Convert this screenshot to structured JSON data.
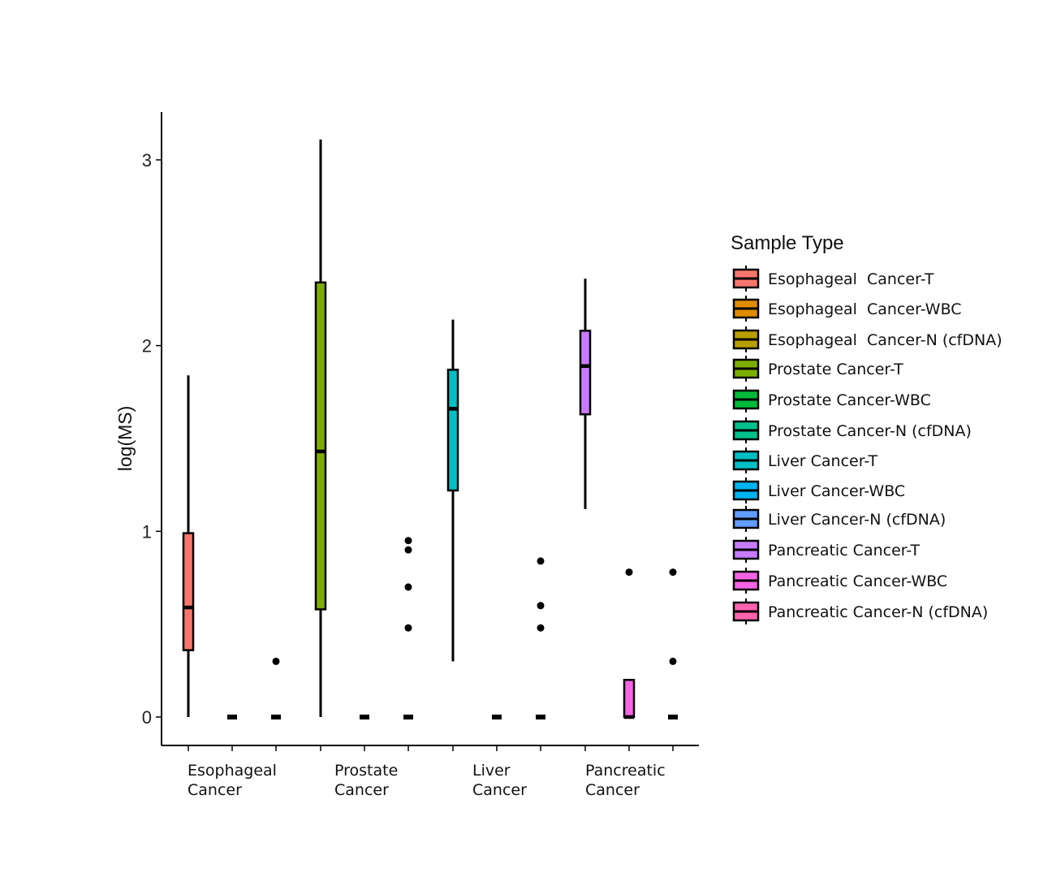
{
  "chart_data": {
    "type": "box",
    "ylabel": "log(MS)",
    "ylim": [
      -0.15,
      3.25
    ],
    "yticks": [
      0,
      1,
      2,
      3
    ],
    "grid": false,
    "legend_position": "right",
    "legend_title": "Sample Type",
    "categories": [
      [
        "Esophageal",
        "Cancer"
      ],
      [
        "Prostate",
        "Cancer"
      ],
      [
        "Liver",
        "Cancer"
      ],
      [
        "Pancreatic",
        "Cancer"
      ]
    ],
    "series": [
      {
        "name": "Esophageal  Cancer-T",
        "color": "#F8766D",
        "group": 0,
        "slot": 0,
        "box": {
          "min": 0.0,
          "q1": 0.36,
          "median": 0.59,
          "q3": 0.99,
          "max": 1.84
        },
        "outliers": []
      },
      {
        "name": "Esophageal  Cancer-WBC",
        "color": "#DE8C00",
        "group": 0,
        "slot": 1,
        "box": {
          "min": 0.0,
          "q1": 0.0,
          "median": 0.0,
          "q3": 0.0,
          "max": 0.0
        },
        "outliers": []
      },
      {
        "name": "Esophageal  Cancer-N (cfDNA)",
        "color": "#B79F00",
        "group": 0,
        "slot": 2,
        "box": {
          "min": 0.0,
          "q1": 0.0,
          "median": 0.0,
          "q3": 0.0,
          "max": 0.0
        },
        "outliers": [
          0.3
        ]
      },
      {
        "name": "Prostate Cancer-T",
        "color": "#7CAE00",
        "group": 1,
        "slot": 0,
        "box": {
          "min": 0.0,
          "q1": 0.58,
          "median": 1.43,
          "q3": 2.34,
          "max": 3.11
        },
        "outliers": []
      },
      {
        "name": "Prostate Cancer-WBC",
        "color": "#00BA38",
        "group": 1,
        "slot": 1,
        "box": {
          "min": 0.0,
          "q1": 0.0,
          "median": 0.0,
          "q3": 0.0,
          "max": 0.0
        },
        "outliers": []
      },
      {
        "name": "Prostate Cancer-N (cfDNA)",
        "color": "#00C08B",
        "group": 1,
        "slot": 2,
        "box": {
          "min": 0.0,
          "q1": 0.0,
          "median": 0.0,
          "q3": 0.0,
          "max": 0.0
        },
        "outliers": [
          0.48,
          0.7,
          0.9,
          0.95
        ]
      },
      {
        "name": "Liver Cancer-T",
        "color": "#00BFC4",
        "group": 2,
        "slot": 0,
        "box": {
          "min": 0.3,
          "q1": 1.22,
          "median": 1.66,
          "q3": 1.87,
          "max": 2.14
        },
        "outliers": []
      },
      {
        "name": "Liver Cancer-WBC",
        "color": "#00B4F0",
        "group": 2,
        "slot": 1,
        "box": {
          "min": 0.0,
          "q1": 0.0,
          "median": 0.0,
          "q3": 0.0,
          "max": 0.0
        },
        "outliers": []
      },
      {
        "name": "Liver Cancer-N (cfDNA)",
        "color": "#619CFF",
        "group": 2,
        "slot": 2,
        "box": {
          "min": 0.0,
          "q1": 0.0,
          "median": 0.0,
          "q3": 0.0,
          "max": 0.0
        },
        "outliers": [
          0.48,
          0.6,
          0.84
        ]
      },
      {
        "name": "Pancreatic Cancer-T",
        "color": "#C77CFF",
        "group": 3,
        "slot": 0,
        "box": {
          "min": 1.12,
          "q1": 1.63,
          "median": 1.89,
          "q3": 2.08,
          "max": 2.36
        },
        "outliers": []
      },
      {
        "name": "Pancreatic Cancer-WBC",
        "color": "#F564E3",
        "group": 3,
        "slot": 1,
        "box": {
          "min": 0.0,
          "q1": 0.0,
          "median": 0.0,
          "q3": 0.2,
          "max": 0.2
        },
        "outliers": [
          0.78
        ]
      },
      {
        "name": "Pancreatic Cancer-N (cfDNA)",
        "color": "#FF64B0",
        "group": 3,
        "slot": 2,
        "box": {
          "min": 0.0,
          "q1": 0.0,
          "median": 0.0,
          "q3": 0.0,
          "max": 0.0
        },
        "outliers": [
          0.3,
          0.78
        ]
      }
    ]
  }
}
